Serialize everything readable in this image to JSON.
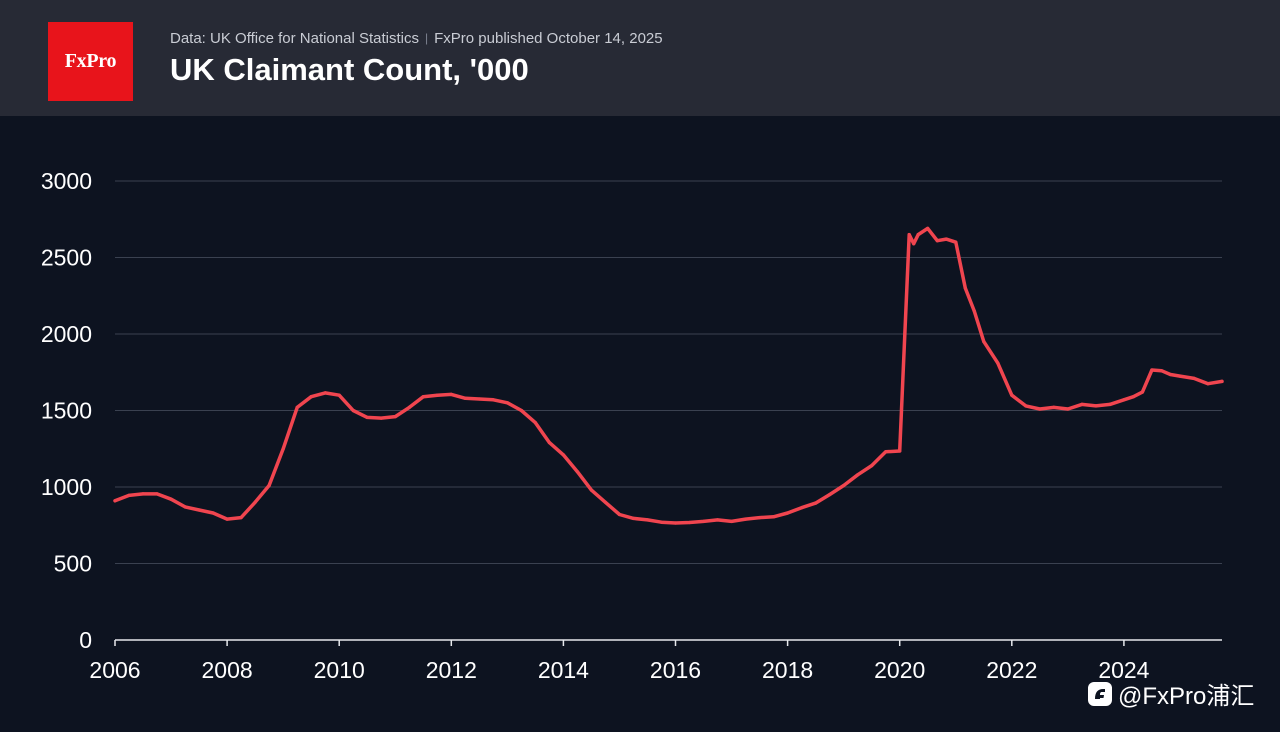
{
  "header": {
    "logo_text": "FxPro",
    "source_text": "Data: UK Office for National Statistics",
    "separator": "|",
    "published_text": "FxPro published October 14, 2025",
    "title": "UK Claimant Count, '000"
  },
  "watermark": {
    "text": "@FxPro浦汇",
    "icon": "brand-icon"
  },
  "colors": {
    "header_bg": "#272a35",
    "chart_bg": "#0d1320",
    "line": "#f0454f",
    "grid": "#3a4150",
    "logo_bg": "#e8141b"
  },
  "chart_data": {
    "type": "line",
    "title": "UK Claimant Count, '000",
    "xlabel": "",
    "ylabel": "",
    "xlim": [
      2006,
      2025.75
    ],
    "ylim": [
      0,
      3000
    ],
    "yticks": [
      0,
      500,
      1000,
      1500,
      2000,
      2500,
      3000
    ],
    "xticks": [
      2006,
      2008,
      2010,
      2012,
      2014,
      2016,
      2018,
      2020,
      2022,
      2024
    ],
    "grid": true,
    "series": [
      {
        "name": "UK Claimant Count",
        "x": [
          2006.0,
          2006.25,
          2006.5,
          2006.75,
          2007.0,
          2007.25,
          2007.5,
          2007.75,
          2008.0,
          2008.25,
          2008.5,
          2008.75,
          2009.0,
          2009.25,
          2009.5,
          2009.75,
          2010.0,
          2010.25,
          2010.5,
          2010.75,
          2011.0,
          2011.25,
          2011.5,
          2011.75,
          2012.0,
          2012.25,
          2012.5,
          2012.75,
          2013.0,
          2013.25,
          2013.5,
          2013.75,
          2014.0,
          2014.25,
          2014.5,
          2014.75,
          2015.0,
          2015.25,
          2015.5,
          2015.75,
          2016.0,
          2016.25,
          2016.5,
          2016.75,
          2017.0,
          2017.25,
          2017.5,
          2017.75,
          2018.0,
          2018.25,
          2018.5,
          2018.75,
          2019.0,
          2019.25,
          2019.5,
          2019.75,
          2020.0,
          2020.17,
          2020.25,
          2020.33,
          2020.5,
          2020.67,
          2020.83,
          2021.0,
          2021.17,
          2021.33,
          2021.5,
          2021.75,
          2022.0,
          2022.25,
          2022.5,
          2022.75,
          2023.0,
          2023.25,
          2023.5,
          2023.75,
          2024.0,
          2024.17,
          2024.33,
          2024.5,
          2024.67,
          2024.83,
          2025.0,
          2025.25,
          2025.5,
          2025.75
        ],
        "values": [
          910,
          945,
          955,
          955,
          920,
          870,
          850,
          830,
          790,
          800,
          900,
          1010,
          1250,
          1520,
          1590,
          1615,
          1600,
          1500,
          1455,
          1450,
          1460,
          1520,
          1590,
          1600,
          1605,
          1580,
          1575,
          1570,
          1550,
          1500,
          1420,
          1290,
          1210,
          1100,
          980,
          900,
          820,
          795,
          785,
          770,
          765,
          768,
          775,
          785,
          775,
          790,
          800,
          805,
          830,
          865,
          895,
          950,
          1010,
          1080,
          1140,
          1230,
          1235,
          2650,
          2590,
          2650,
          2690,
          2610,
          2620,
          2600,
          2300,
          2150,
          1950,
          1810,
          1600,
          1530,
          1510,
          1520,
          1510,
          1540,
          1530,
          1540,
          1570,
          1590,
          1620,
          1765,
          1760,
          1735,
          1725,
          1710,
          1675,
          1690
        ]
      }
    ]
  }
}
